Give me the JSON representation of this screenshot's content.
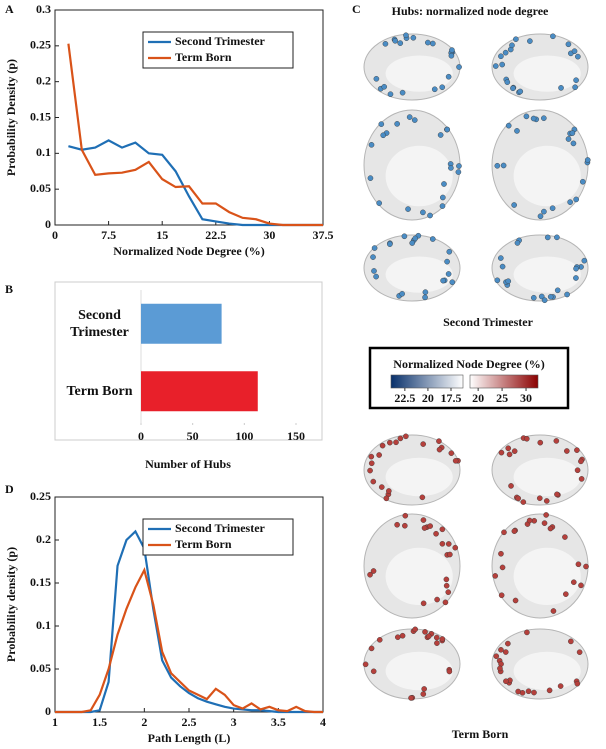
{
  "chart_data": [
    {
      "type": "line",
      "label": "A",
      "xlabel": "Normalized Node Degree (%)",
      "ylabel": "Probability Density (p)",
      "x": [
        1.875,
        3.75,
        5.625,
        7.5,
        9.375,
        11.25,
        13.125,
        15,
        16.875,
        18.75,
        20.625,
        22.5,
        24.375,
        26.25,
        28.125,
        30,
        31.875,
        33.75,
        35.625,
        37.5
      ],
      "series": [
        {
          "name": "Second Trimester",
          "color": "#1f6fb5",
          "values": [
            0.11,
            0.105,
            0.108,
            0.118,
            0.108,
            0.115,
            0.1,
            0.098,
            0.075,
            0.04,
            0.008,
            0.005,
            0.002,
            0,
            0,
            0,
            0,
            0,
            0,
            0
          ]
        },
        {
          "name": "Term Born",
          "color": "#d95319",
          "values": [
            0.253,
            0.105,
            0.07,
            0.072,
            0.073,
            0.077,
            0.088,
            0.064,
            0.053,
            0.054,
            0.03,
            0.03,
            0.018,
            0.01,
            0.008,
            0.002,
            0,
            0,
            0,
            0
          ]
        }
      ],
      "xlim": [
        0,
        37.5
      ],
      "xticks": [
        0,
        7.5,
        15,
        22.5,
        30,
        37.5
      ],
      "ylim": [
        0,
        0.3
      ],
      "yticks": [
        0,
        0.05,
        0.1,
        0.15,
        0.2,
        0.25,
        0.3
      ],
      "legend": "upper right"
    },
    {
      "type": "barh",
      "label": "B",
      "xlabel": "Number of Hubs",
      "categories": [
        "Second Trimester",
        "Term Born"
      ],
      "values": [
        78,
        113
      ],
      "colors": [
        "#5b9bd5",
        "#e8202a"
      ],
      "xlim": [
        0,
        150
      ],
      "xticks": [
        0,
        50,
        100,
        150
      ]
    },
    {
      "type": "line",
      "label": "D",
      "xlabel": "Path Length (L)",
      "ylabel": "Probability density (p)",
      "x": [
        1.0,
        1.1,
        1.2,
        1.3,
        1.4,
        1.5,
        1.6,
        1.7,
        1.8,
        1.9,
        2.0,
        2.1,
        2.2,
        2.3,
        2.4,
        2.5,
        2.6,
        2.7,
        2.8,
        2.9,
        3.0,
        3.1,
        3.2,
        3.3,
        3.4,
        3.5,
        3.6,
        3.7,
        3.8,
        3.9,
        4.0
      ],
      "series": [
        {
          "name": "Second Trimester",
          "color": "#1f6fb5",
          "values": [
            0,
            0,
            0,
            0,
            0,
            0.002,
            0.035,
            0.17,
            0.2,
            0.21,
            0.19,
            0.12,
            0.06,
            0.04,
            0.03,
            0.022,
            0.016,
            0.012,
            0.009,
            0.006,
            0.004,
            0.003,
            0.002,
            0.002,
            0.001,
            0,
            0,
            0,
            0,
            0,
            0
          ]
        },
        {
          "name": "Term Born",
          "color": "#d95319",
          "values": [
            0,
            0,
            0,
            0,
            0.002,
            0.02,
            0.05,
            0.09,
            0.12,
            0.145,
            0.165,
            0.125,
            0.07,
            0.045,
            0.035,
            0.025,
            0.02,
            0.015,
            0.027,
            0.02,
            0.008,
            0.004,
            0.01,
            0.003,
            0.006,
            0.002,
            0.001,
            0.006,
            0.001,
            0,
            0
          ]
        }
      ],
      "xlim": [
        1,
        4
      ],
      "xticks": [
        1,
        1.5,
        2,
        2.5,
        3,
        3.5,
        4
      ],
      "ylim": [
        0,
        0.25
      ],
      "yticks": [
        0,
        0.05,
        0.1,
        0.15,
        0.2,
        0.25
      ],
      "legend": "upper right"
    }
  ],
  "brain_panel": {
    "label": "C",
    "title": "Hubs: normalized node degree",
    "groups": [
      "Second Trimester",
      "Term Born"
    ],
    "colorbar": {
      "title": "Normalized Node Degree (%)",
      "scales": [
        {
          "lim": [
            24,
            16.2
          ],
          "ticks": [
            22.5,
            20,
            17.5
          ],
          "colors": [
            "#08306b",
            "#ffffff"
          ]
        },
        {
          "lim": [
            18.3,
            32.5
          ],
          "ticks": [
            20,
            25,
            30
          ],
          "colors": [
            "#ffffff",
            "#8b0000"
          ]
        }
      ]
    }
  }
}
